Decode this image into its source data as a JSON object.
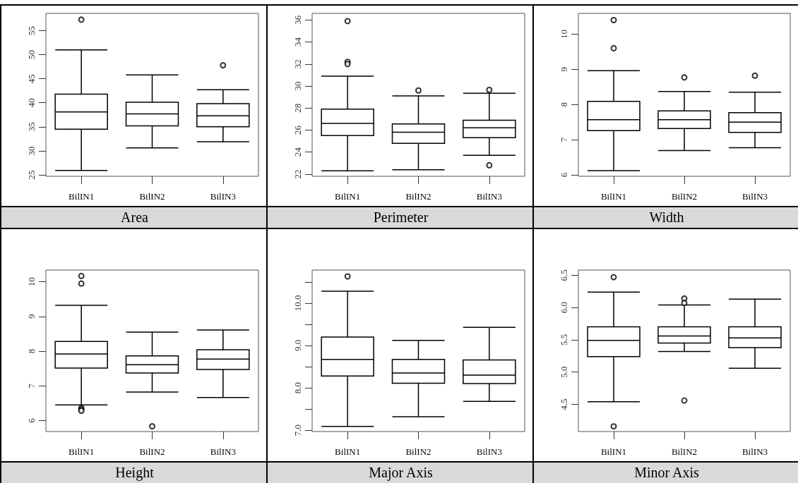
{
  "chart_data": [
    {
      "type": "box",
      "title": "Area",
      "categories": [
        "BilIN1",
        "BilIN2",
        "BilIN3"
      ],
      "ylim": [
        24.7,
        58.6
      ],
      "yticks": [
        25,
        30,
        35,
        40,
        45,
        50,
        55
      ],
      "boxes": [
        {
          "low": 25.9,
          "q1": 34.5,
          "median": 38.1,
          "q3": 41.8,
          "high": 51.0,
          "outliers": [
            57.3
          ]
        },
        {
          "low": 30.6,
          "q1": 35.2,
          "median": 37.7,
          "q3": 40.1,
          "high": 45.8
        },
        {
          "low": 31.9,
          "q1": 35.0,
          "median": 37.3,
          "q3": 39.8,
          "high": 42.7,
          "outliers": [
            47.8
          ]
        }
      ]
    },
    {
      "type": "box",
      "title": "Perimeter",
      "categories": [
        "BilIN1",
        "BilIN2",
        "BilIN3"
      ],
      "ylim": [
        21.8,
        36.6
      ],
      "yticks": [
        22,
        24,
        26,
        28,
        30,
        32,
        34,
        36
      ],
      "boxes": [
        {
          "low": 22.3,
          "q1": 25.5,
          "median": 26.6,
          "q3": 27.9,
          "high": 30.9,
          "outliers": [
            35.9,
            32.2,
            32.0
          ]
        },
        {
          "low": 22.4,
          "q1": 24.8,
          "median": 25.8,
          "q3": 26.55,
          "high": 29.1,
          "outliers": [
            29.6
          ]
        },
        {
          "low": 23.7,
          "q1": 25.3,
          "median": 26.2,
          "q3": 26.9,
          "high": 29.35,
          "outliers": [
            29.65,
            22.8
          ]
        }
      ]
    },
    {
      "type": "box",
      "title": "Width",
      "categories": [
        "BilIN1",
        "BilIN2",
        "BilIN3"
      ],
      "ylim": [
        5.96,
        10.59
      ],
      "yticks": [
        6,
        7,
        8,
        9,
        10
      ],
      "boxes": [
        {
          "low": 6.12,
          "q1": 7.26,
          "median": 7.57,
          "q3": 8.09,
          "high": 8.96,
          "outliers": [
            10.4,
            9.6
          ]
        },
        {
          "low": 6.69,
          "q1": 7.32,
          "median": 7.57,
          "q3": 7.82,
          "high": 8.37,
          "outliers": [
            8.77
          ]
        },
        {
          "low": 6.77,
          "q1": 7.21,
          "median": 7.5,
          "q3": 7.77,
          "high": 8.35,
          "outliers": [
            8.82
          ]
        }
      ]
    },
    {
      "type": "box",
      "title": "Height",
      "categories": [
        "BilIN1",
        "BilIN2",
        "BilIN3"
      ],
      "ylim": [
        5.68,
        10.34
      ],
      "yticks": [
        6,
        7,
        8,
        9,
        10
      ],
      "boxes": [
        {
          "low": 6.45,
          "q1": 7.51,
          "median": 7.92,
          "q3": 8.28,
          "high": 9.32,
          "outliers": [
            10.17,
            9.95,
            6.36,
            6.32,
            6.28
          ]
        },
        {
          "low": 6.82,
          "q1": 7.37,
          "median": 7.61,
          "q3": 7.86,
          "high": 8.55,
          "outliers": [
            5.83
          ]
        },
        {
          "low": 6.66,
          "q1": 7.47,
          "median": 7.77,
          "q3": 8.04,
          "high": 8.61
        }
      ]
    },
    {
      "type": "box",
      "title": "Major Axis",
      "categories": [
        "BilIN1",
        "BilIN2",
        "BilIN3"
      ],
      "ylim": [
        6.97,
        10.78
      ],
      "yticks": [
        {
          "value": 7,
          "label": "7.0"
        },
        {
          "value": 7.5,
          "label": null
        },
        {
          "value": 8,
          "label": "8.0"
        },
        {
          "value": 8.5,
          "label": null
        },
        {
          "value": 9,
          "label": "9.0"
        },
        {
          "value": 9.5,
          "label": null
        },
        {
          "value": 10,
          "label": "10.0"
        },
        {
          "value": 10.5,
          "label": null
        }
      ],
      "boxes": [
        {
          "low": 7.09,
          "q1": 8.28,
          "median": 8.67,
          "q3": 9.2,
          "high": 10.28,
          "outliers": [
            10.63
          ]
        },
        {
          "low": 7.32,
          "q1": 8.11,
          "median": 8.35,
          "q3": 8.67,
          "high": 9.12
        },
        {
          "low": 7.68,
          "q1": 8.1,
          "median": 8.3,
          "q3": 8.66,
          "high": 9.43
        }
      ]
    },
    {
      "type": "box",
      "title": "Minor Axis",
      "categories": [
        "BilIN1",
        "BilIN2",
        "BilIN3"
      ],
      "ylim": [
        4.08,
        6.58
      ],
      "yticks": [
        4.5,
        {
          "value": 5,
          "label": "5.0"
        },
        5.5,
        {
          "value": 6,
          "label": "6.0"
        },
        6.5
      ],
      "boxes": [
        {
          "low": 4.54,
          "q1": 5.24,
          "median": 5.49,
          "q3": 5.7,
          "high": 6.24,
          "outliers": [
            6.47,
            4.16
          ]
        },
        {
          "low": 5.32,
          "q1": 5.45,
          "median": 5.56,
          "q3": 5.7,
          "high": 6.04,
          "outliers": [
            6.14,
            6.07,
            4.56
          ]
        },
        {
          "low": 5.06,
          "q1": 5.38,
          "median": 5.53,
          "q3": 5.7,
          "high": 6.13
        }
      ]
    }
  ]
}
